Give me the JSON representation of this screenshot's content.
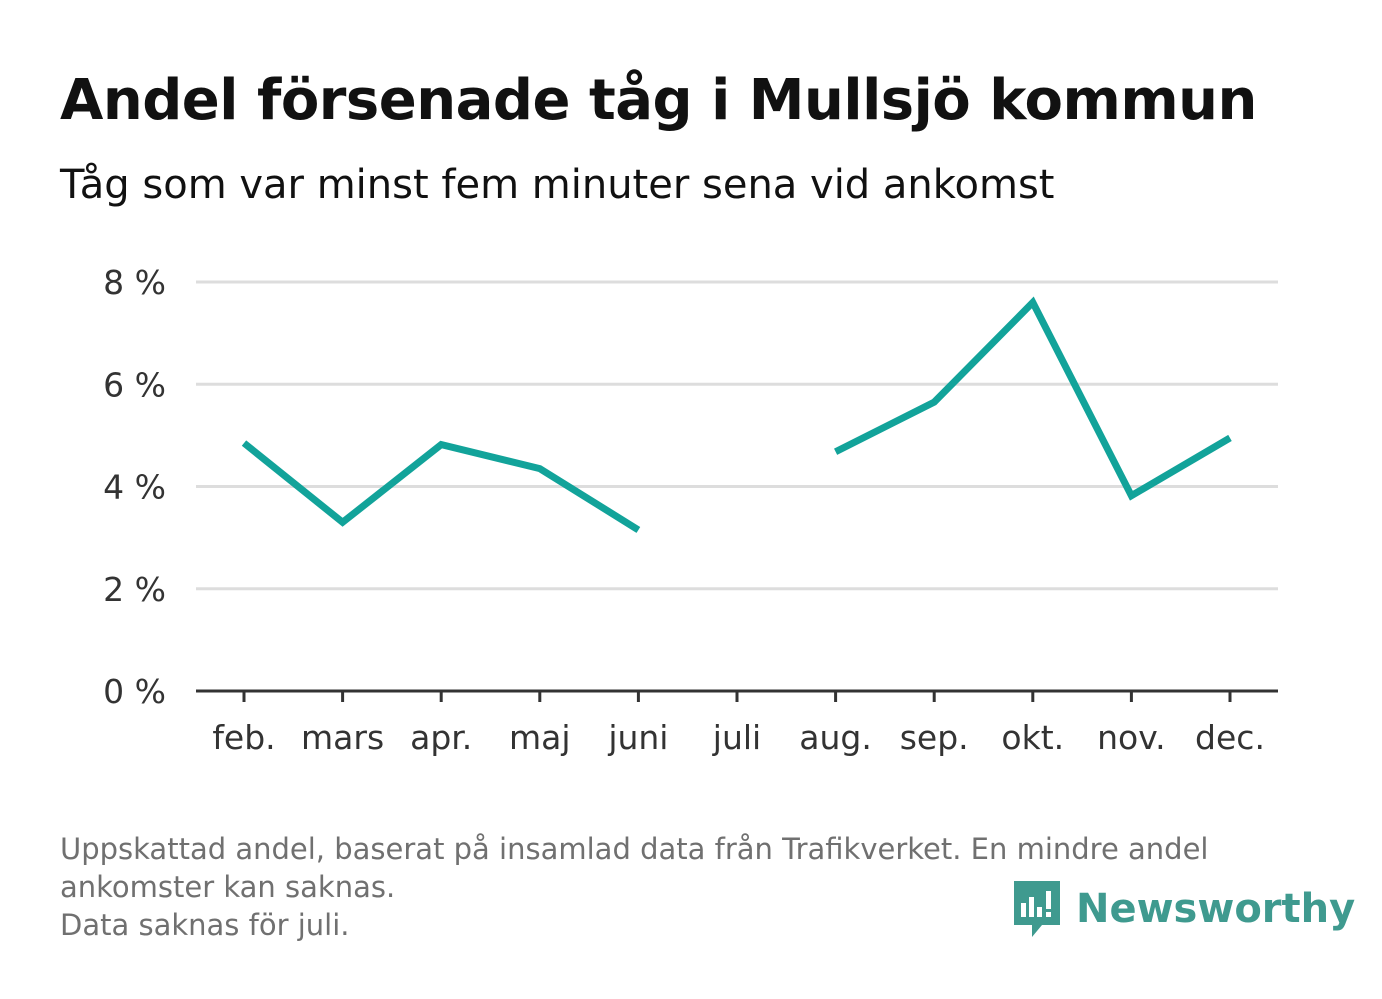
{
  "title": "Andel försenade tåg i Mullsjö kommun",
  "subtitle": "Tåg som var minst fem minuter sena vid ankomst",
  "footnote": {
    "line1": "Uppskattad andel, baserat på insamlad data från Trafikverket. En mindre andel",
    "line2": "ankomster kan saknas.",
    "line3": "Data saknas för juli."
  },
  "brand": {
    "name": "Newsworthy",
    "icon": "newsworthy-logo-icon",
    "color": "#3f9a8f"
  },
  "colors": {
    "series": "#12a39a",
    "grid": "#dddddd",
    "axis": "#333333",
    "text": "#333333"
  },
  "chart_data": {
    "type": "line",
    "categories": [
      "feb.",
      "mars",
      "apr.",
      "maj",
      "juni",
      "juli",
      "aug.",
      "sep.",
      "okt.",
      "nov.",
      "dec."
    ],
    "series": [
      {
        "values": [
          4.85,
          3.3,
          4.82,
          4.35,
          3.15,
          null,
          4.68,
          5.65,
          7.6,
          3.82,
          4.95
        ]
      }
    ],
    "yticks": [
      "0 %",
      "2 %",
      "4 %",
      "6 %",
      "8 %"
    ],
    "ylim": [
      0,
      8
    ],
    "grid": true,
    "xlabel": "",
    "ylabel": ""
  }
}
